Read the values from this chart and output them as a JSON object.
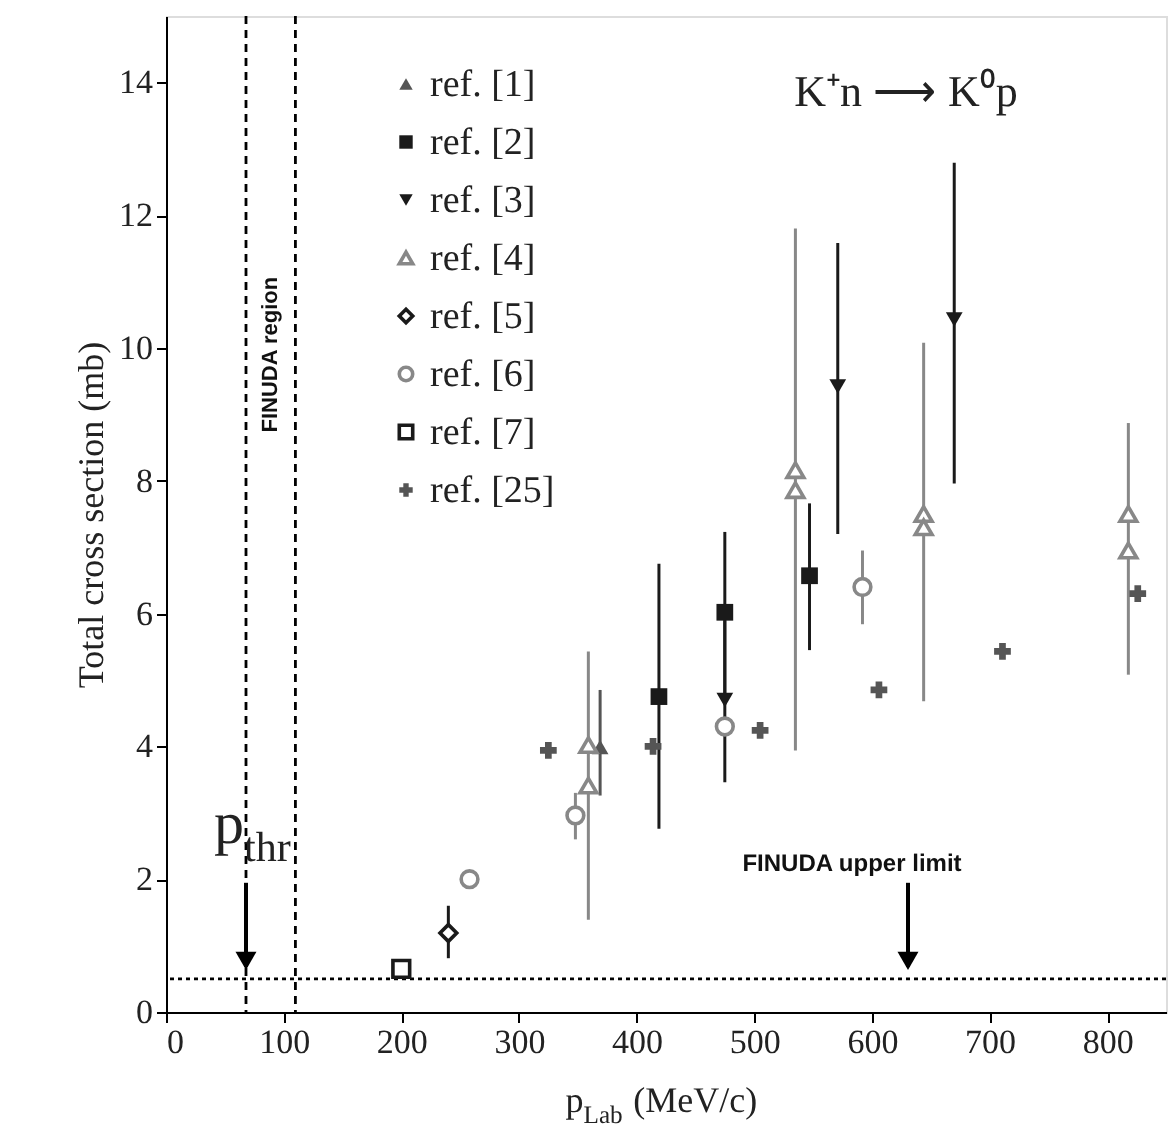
{
  "chart_data": {
    "type": "scatter",
    "xlabel": "p$_{Lab}$ (MeV/c)",
    "ylabel": "Total cross section (mb)",
    "xlim": [
      0,
      850
    ],
    "ylim": [
      0,
      15
    ],
    "xticks": [
      0,
      100,
      200,
      300,
      400,
      500,
      600,
      700,
      800
    ],
    "yticks": [
      0,
      2,
      4,
      6,
      8,
      10,
      12,
      14
    ],
    "grid": false,
    "legend": "top left",
    "series": [
      {
        "name": "ref. [1]",
        "color": "#555555",
        "marker": "triangle",
        "x": [
          369
        ],
        "values": [
          3.99
        ],
        "errors": [
          [
            3.26,
            4.85
          ]
        ]
      },
      {
        "name": "ref. [2]",
        "color": "#1a1a1a",
        "marker": "square",
        "x": [
          419,
          475,
          547
        ],
        "values": [
          4.75,
          6.02,
          6.57
        ],
        "errors": [
          [
            2.76,
            6.75
          ],
          [
            4.8,
            7.23
          ],
          [
            5.45,
            7.66
          ]
        ]
      },
      {
        "name": "ref. [3]",
        "color": "#1a1a1a",
        "marker": "triangle-down",
        "x": [
          475,
          571,
          670
        ],
        "values": [
          4.7,
          9.42,
          10.43
        ],
        "errors": [
          [
            3.46,
            5.9
          ],
          [
            7.2,
            11.58
          ],
          [
            7.96,
            12.79
          ]
        ]
      },
      {
        "name": "ref. [4]",
        "color": "#888888",
        "marker": "triangle-open",
        "x": [
          359,
          359,
          535,
          535,
          644,
          644,
          818,
          818
        ],
        "values": [
          4.02,
          3.41,
          8.16,
          7.86,
          7.5,
          7.3,
          7.5,
          6.95
        ],
        "errors": [
          null,
          [
            1.39,
            5.43
          ],
          null,
          [
            3.94,
            11.8
          ],
          null,
          [
            4.68,
            10.08
          ],
          null,
          [
            5.08,
            8.87
          ]
        ]
      },
      {
        "name": "ref. [5]",
        "color": "#1a1a1a",
        "marker": "diamond-open",
        "x": [
          240
        ],
        "values": [
          1.19
        ],
        "errors": [
          [
            0.81,
            1.6
          ]
        ]
      },
      {
        "name": "ref. [6]",
        "color": "#888888",
        "marker": "circle-open",
        "x": [
          258,
          348,
          475,
          592
        ],
        "values": [
          2.0,
          2.96,
          4.3,
          6.4
        ],
        "errors": [
          null,
          [
            2.6,
            3.3
          ],
          null,
          [
            5.84,
            6.95
          ]
        ]
      },
      {
        "name": "ref. [7]",
        "color": "#1a1a1a",
        "marker": "square-open",
        "x": [
          200
        ],
        "values": [
          0.65
        ]
      },
      {
        "name": "ref. [25]",
        "color": "#555555",
        "marker": "cross",
        "x": [
          325,
          414,
          505,
          606,
          711,
          826
        ],
        "values": [
          3.94,
          4.0,
          4.24,
          4.85,
          5.43,
          6.3
        ]
      }
    ],
    "ref_lines": [
      {
        "axis": "y",
        "value": 0.5,
        "line_style": "dotted",
        "color": "#000000"
      },
      {
        "axis": "x",
        "value": 68,
        "line_style": "dashed",
        "color": "#000000"
      },
      {
        "axis": "x",
        "value": 110,
        "line_style": "dashed",
        "color": "#000000"
      }
    ],
    "annotations": [
      "K⁺n ⟶ K⁰p",
      "FINUDA  region",
      {
        "text": "p$_{thr}$",
        "x": 68,
        "y": 0.5
      },
      "FINUDA  upper limit"
    ]
  }
}
